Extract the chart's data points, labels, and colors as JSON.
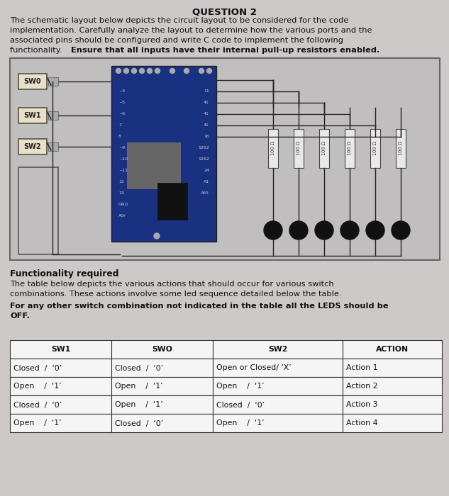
{
  "title": "QUESTION 2",
  "line1": "The schematic layout below depicts the circuit layout to be considered for the code",
  "line2": "implementation. Carefully analyze the layout to determine how the various ports and the",
  "line3": "associated pins should be configured and write C code to implement the following",
  "line4_normal": "functionality. ",
  "line4_bold": "Ensure that all inputs have their internal pull-up resistors enabled.",
  "functionality_title": "Functionality required",
  "func_line1": "The table below depicts the various actions that should occur for various switch",
  "func_line2": "combinations. These actions involve some led sequence detailed below the table.",
  "func_bold1": "For any other switch combination not indicated in the table all the LEDS should be",
  "func_bold2": "OFF.",
  "table_headers": [
    "SW1",
    "SWO",
    "SW2",
    "ACTION"
  ],
  "table_row1": [
    "Closed  /  ‘0’",
    "Closed  /  ‘0’",
    "Open or Closed/ ‘X’",
    "Action 1"
  ],
  "table_row2": [
    "Open    /  ‘1’",
    "Open    /  ‘1’",
    "Open    /  ‘1’",
    "Action 2"
  ],
  "table_row3": [
    "Closed  /  ‘0’",
    "Open    /  ‘1’",
    "Closed  /  ‘0’",
    "Action 3"
  ],
  "table_row4": [
    "Open    /  ‘1’",
    "Closed  /  ‘0’",
    "Open    /  ‘1’",
    "Action 4"
  ],
  "bg_color": "#cdc9c9",
  "circuit_bg": "#c0bebe",
  "board_color": "#1a3080",
  "text_color": "#111111",
  "table_bg": "#f5f5f5",
  "table_border": "#333333",
  "sw_box_color": "#e8e0c8",
  "sw_box_border": "#555544",
  "resistor_color": "#e8e8e8",
  "led_color": "#111111",
  "wire_color": "#222222"
}
